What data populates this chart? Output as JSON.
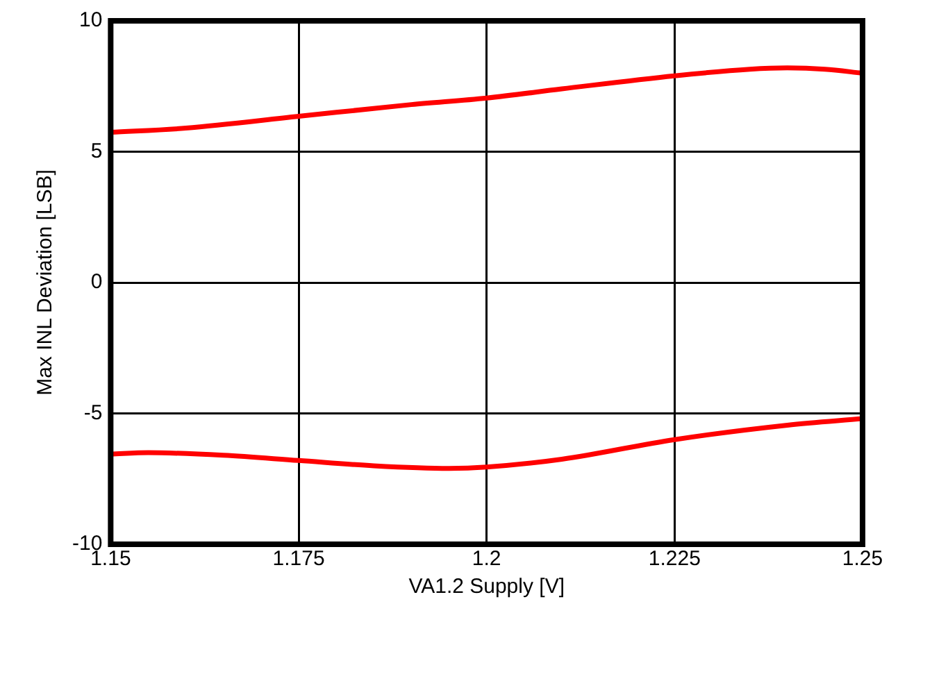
{
  "chart_data": {
    "type": "line",
    "xlabel": "VA1.2 Supply [V]",
    "ylabel": "Max INL Deviation [LSB]",
    "xlim": [
      1.15,
      1.25
    ],
    "xticks": [
      1.15,
      1.175,
      1.2,
      1.225,
      1.25
    ],
    "ylim": [
      -10,
      10
    ],
    "yticks": [
      -10,
      -5,
      0,
      5,
      10
    ],
    "grid": true,
    "legend": false,
    "marker": "none",
    "series": [
      {
        "color": "#ff0000",
        "x": [
          1.15,
          1.16,
          1.175,
          1.19,
          1.2,
          1.21,
          1.225,
          1.235,
          1.24,
          1.245,
          1.25
        ],
        "values": [
          5.74,
          5.9,
          6.35,
          6.8,
          7.05,
          7.4,
          7.9,
          8.15,
          8.2,
          8.15,
          8.0
        ]
      },
      {
        "color": "#ff0000",
        "x": [
          1.15,
          1.155,
          1.165,
          1.175,
          1.185,
          1.195,
          1.2,
          1.21,
          1.225,
          1.24,
          1.25
        ],
        "values": [
          -6.55,
          -6.5,
          -6.6,
          -6.8,
          -7.0,
          -7.1,
          -7.05,
          -6.75,
          -6.0,
          -5.45,
          -5.2
        ]
      }
    ]
  }
}
